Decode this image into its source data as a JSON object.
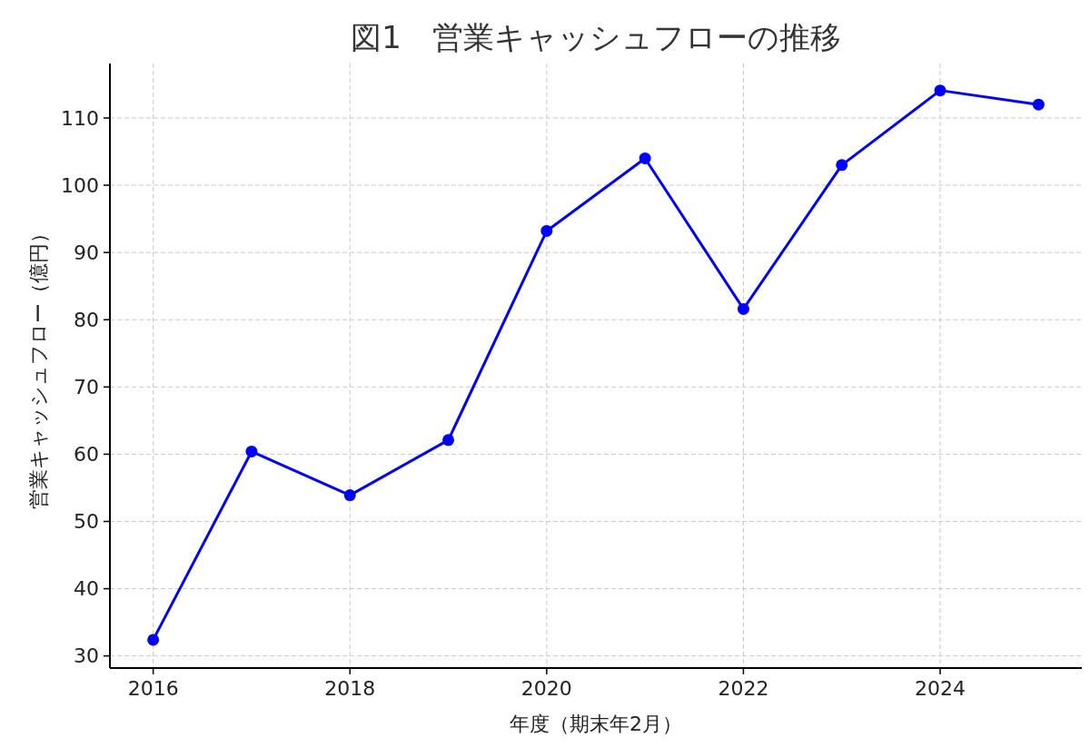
{
  "chart_data": {
    "type": "line",
    "title": "図1　営業キャッシュフローの推移",
    "xlabel": "年度（期末年2月）",
    "ylabel": "営業キャッシュフロー（億円）",
    "x": [
      2016,
      2017,
      2018,
      2019,
      2020,
      2021,
      2022,
      2023,
      2024,
      2025
    ],
    "series": [
      {
        "color": "#0000ff",
        "values": [
          32.4,
          60.4,
          53.9,
          62.1,
          93.2,
          104.0,
          81.6,
          103.0,
          114.1,
          112.0
        ]
      }
    ],
    "xlim": [
      2015.56,
      2025.44
    ],
    "xticks": [
      2016,
      2018,
      2020,
      2022,
      2024
    ],
    "ylim": [
      28.2,
      118.1
    ],
    "yticks": [
      30,
      40,
      50,
      60,
      70,
      80,
      90,
      100,
      110
    ],
    "grid": true,
    "marker": "circle",
    "line_style": "solid"
  }
}
